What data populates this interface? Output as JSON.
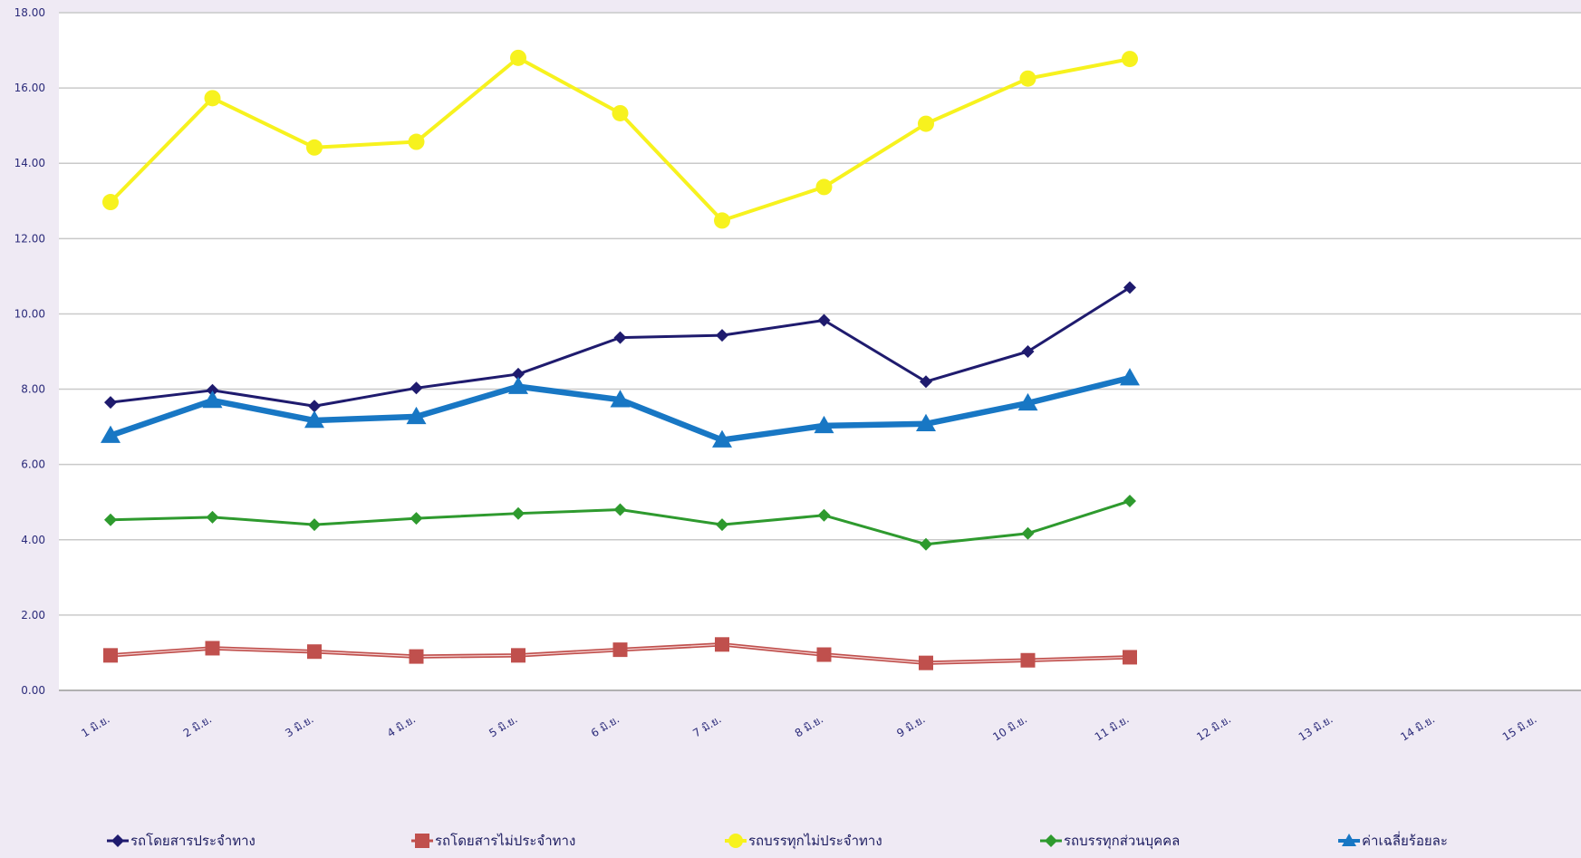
{
  "chart_data": {
    "type": "line",
    "title": "",
    "xlabel": "",
    "ylabel": "",
    "categories": [
      "1 มิ.ย.",
      "2 มิ.ย.",
      "3 มิ.ย.",
      "4 มิ.ย.",
      "5 มิ.ย.",
      "6 มิ.ย.",
      "7 มิ.ย.",
      "8 มิ.ย.",
      "9 มิ.ย.",
      "10 มิ.ย.",
      "11 มิ.ย.",
      "12 มิ.ย.",
      "13 มิ.ย.",
      "14 มิ.ย.",
      "15 มิ.ย."
    ],
    "ylim": [
      0,
      18
    ],
    "yticks": [
      "0.00",
      "2.00",
      "4.00",
      "6.00",
      "8.00",
      "10.00",
      "12.00",
      "14.00",
      "16.00",
      "18.00"
    ],
    "grid": true,
    "legend_position": "bottom",
    "series": [
      {
        "name": "รถโดยสารประจำทาง",
        "color": "#1f1b6e",
        "marker": "diamond",
        "values": [
          7.65,
          7.97,
          7.55,
          8.03,
          8.4,
          9.37,
          9.43,
          9.83,
          8.2,
          9.0,
          10.7,
          null,
          null,
          null,
          null
        ]
      },
      {
        "name": "รถโดยสารไม่ประจำทาง",
        "color": "#c0504d",
        "marker": "square",
        "values": [
          0.93,
          1.12,
          1.03,
          0.9,
          0.93,
          1.08,
          1.22,
          0.95,
          0.73,
          0.8,
          0.88,
          null,
          null,
          null,
          null
        ]
      },
      {
        "name": "รถบรรทุกไม่ประจำทาง",
        "color": "#f7f21e",
        "marker": "circle",
        "values": [
          12.97,
          15.73,
          14.42,
          14.57,
          16.8,
          15.33,
          12.48,
          13.37,
          15.05,
          16.25,
          16.77,
          null,
          null,
          null,
          null
        ]
      },
      {
        "name": "รถบรรทุกส่วนบุคคล",
        "color": "#2e9a2e",
        "marker": "diamond",
        "values": [
          4.53,
          4.6,
          4.4,
          4.57,
          4.7,
          4.8,
          4.4,
          4.65,
          3.88,
          4.17,
          5.03,
          null,
          null,
          null,
          null
        ]
      },
      {
        "name": "ค่าเฉลี่ยร้อยละ",
        "color": "#1877c4",
        "marker": "triangle",
        "values": [
          6.77,
          7.7,
          7.17,
          7.27,
          8.07,
          7.72,
          6.65,
          7.03,
          7.08,
          7.63,
          8.3,
          null,
          null,
          null,
          null
        ]
      }
    ]
  }
}
